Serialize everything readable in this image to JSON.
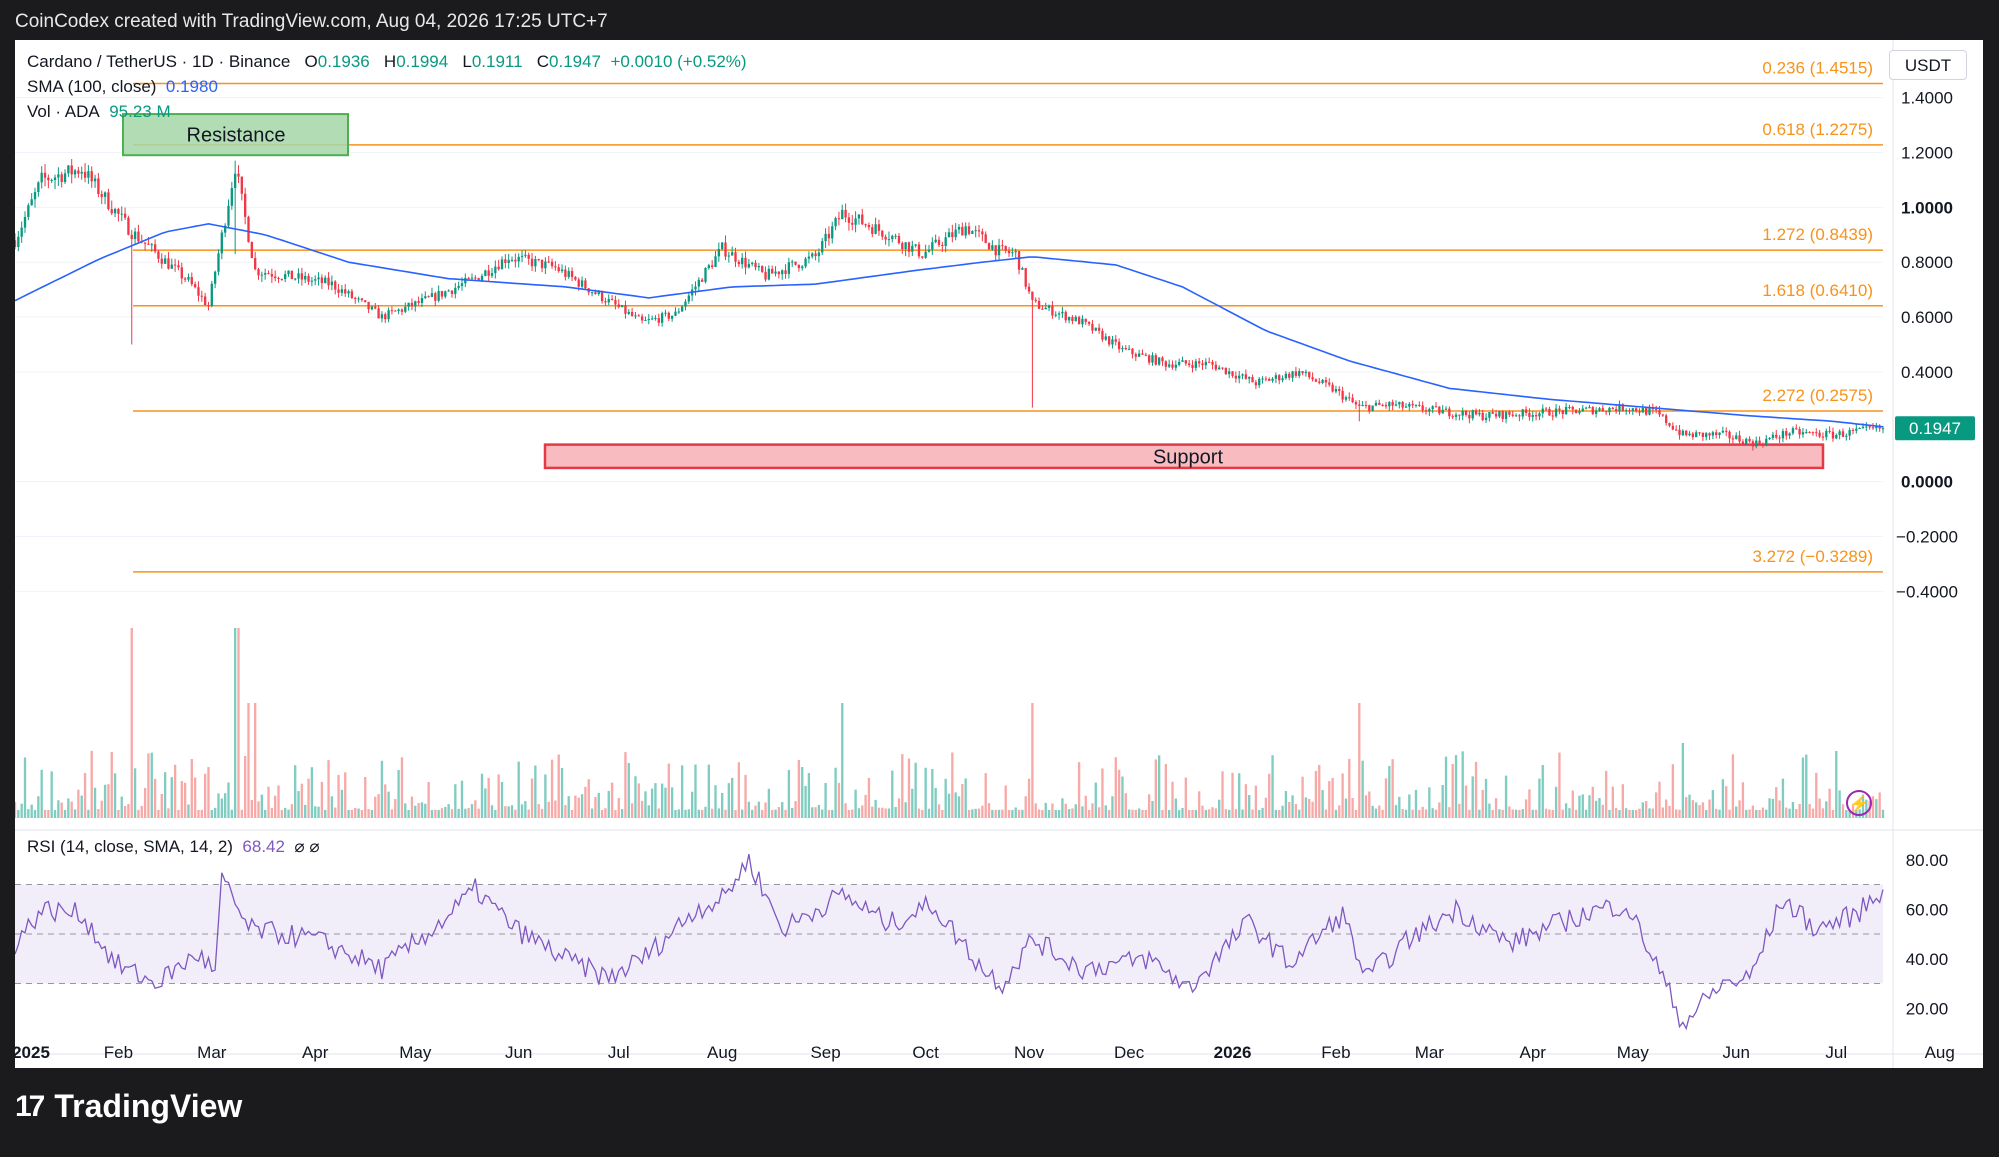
{
  "header": {
    "caption": "CoinCodex created with TradingView.com, Aug 04, 2026 17:25 UTC+7"
  },
  "legend": {
    "symbol": "Cardano / TetherUS · 1D · Binance",
    "o_label": "O",
    "o_value": "0.1936",
    "h_label": "H",
    "h_value": "0.1994",
    "l_label": "L",
    "l_value": "0.1911",
    "c_label": "C",
    "c_value": "0.1947",
    "change": "+0.0010 (+0.52%)",
    "sma_label": "SMA (100, close)",
    "sma_value": "0.1980",
    "vol_label": "Vol · ADA",
    "vol_value": "95.23 M",
    "rsi_label": "RSI (14, close, SMA, 14, 2)",
    "rsi_value": "68.42",
    "rsi_icons": "⌀ ⌀"
  },
  "currency_button": "USDT",
  "brand": {
    "logo": "17",
    "name": "TradingView"
  },
  "chart_data": {
    "type": "candlestick",
    "symbol": "ADAUSDT",
    "x_ticks": [
      "2025",
      "Feb",
      "Mar",
      "Apr",
      "May",
      "Jun",
      "Jul",
      "Aug",
      "Sep",
      "Oct",
      "Nov",
      "Dec",
      "2026",
      "Feb",
      "Mar",
      "Apr",
      "May",
      "Jun",
      "Jul",
      "Aug"
    ],
    "y_ticks": [
      "1.4000",
      "1.2000",
      "1.0000",
      "0.8000",
      "0.6000",
      "0.4000",
      "0.0000",
      "−0.2000",
      "−0.4000"
    ],
    "bold_y_ticks": [
      "1.0000",
      "0.0000"
    ],
    "ylim": [
      -0.57,
      1.61
    ],
    "last_price": "0.1947",
    "price_path": [
      [
        0,
        0.88
      ],
      [
        8,
        1.1
      ],
      [
        20,
        1.14
      ],
      [
        35,
        0.91
      ],
      [
        52,
        0.73
      ],
      [
        58,
        0.64
      ],
      [
        66,
        1.15
      ],
      [
        72,
        0.77
      ],
      [
        95,
        0.72
      ],
      [
        110,
        0.6
      ],
      [
        125,
        0.67
      ],
      [
        138,
        0.74
      ],
      [
        148,
        0.82
      ],
      [
        162,
        0.78
      ],
      [
        175,
        0.68
      ],
      [
        188,
        0.58
      ],
      [
        198,
        0.61
      ],
      [
        212,
        0.85
      ],
      [
        225,
        0.75
      ],
      [
        240,
        0.82
      ],
      [
        248,
        0.98
      ],
      [
        262,
        0.9
      ],
      [
        272,
        0.83
      ],
      [
        285,
        0.93
      ],
      [
        295,
        0.84
      ],
      [
        300,
        0.83
      ],
      [
        305,
        0.65
      ],
      [
        320,
        0.58
      ],
      [
        332,
        0.48
      ],
      [
        345,
        0.43
      ],
      [
        358,
        0.43
      ],
      [
        372,
        0.36
      ],
      [
        385,
        0.4
      ],
      [
        396,
        0.33
      ],
      [
        403,
        0.27
      ],
      [
        412,
        0.28
      ],
      [
        425,
        0.26
      ],
      [
        440,
        0.24
      ],
      [
        455,
        0.25
      ],
      [
        470,
        0.26
      ],
      [
        483,
        0.27
      ],
      [
        492,
        0.25
      ],
      [
        500,
        0.17
      ],
      [
        512,
        0.17
      ],
      [
        522,
        0.14
      ],
      [
        532,
        0.18
      ],
      [
        545,
        0.17
      ],
      [
        560,
        0.1947
      ]
    ],
    "series": [
      {
        "name": "SMA (100, close)",
        "values_path": [
          [
            0,
            0.66
          ],
          [
            25,
            0.81
          ],
          [
            45,
            0.91
          ],
          [
            58,
            0.94
          ],
          [
            75,
            0.9
          ],
          [
            100,
            0.8
          ],
          [
            130,
            0.74
          ],
          [
            165,
            0.71
          ],
          [
            190,
            0.67
          ],
          [
            215,
            0.71
          ],
          [
            240,
            0.72
          ],
          [
            270,
            0.77
          ],
          [
            290,
            0.8
          ],
          [
            305,
            0.82
          ],
          [
            330,
            0.79
          ],
          [
            350,
            0.71
          ],
          [
            375,
            0.55
          ],
          [
            400,
            0.44
          ],
          [
            430,
            0.34
          ],
          [
            460,
            0.3
          ],
          [
            490,
            0.27
          ],
          [
            520,
            0.24
          ],
          [
            545,
            0.22
          ],
          [
            560,
            0.2
          ]
        ]
      },
      {
        "name": "Vol · ADA",
        "last": "95.23 M"
      },
      {
        "name": "RSI (14, close, SMA, 14, 2)",
        "ylim": [
          8,
          88
        ],
        "y_ticks": [
          "80.00",
          "60.00",
          "40.00",
          "20.00"
        ],
        "band": [
          30,
          70
        ],
        "mid": 50,
        "last": 68.42,
        "values_path": [
          [
            0,
            46
          ],
          [
            8,
            60
          ],
          [
            20,
            58
          ],
          [
            30,
            38
          ],
          [
            42,
            30
          ],
          [
            55,
            42
          ],
          [
            60,
            34
          ],
          [
            62,
            72
          ],
          [
            70,
            52
          ],
          [
            90,
            48
          ],
          [
            110,
            36
          ],
          [
            128,
            55
          ],
          [
            138,
            68
          ],
          [
            150,
            52
          ],
          [
            165,
            40
          ],
          [
            178,
            32
          ],
          [
            190,
            42
          ],
          [
            204,
            60
          ],
          [
            212,
            64
          ],
          [
            220,
            80
          ],
          [
            230,
            52
          ],
          [
            248,
            66
          ],
          [
            262,
            54
          ],
          [
            275,
            62
          ],
          [
            290,
            36
          ],
          [
            296,
            30
          ],
          [
            305,
            48
          ],
          [
            320,
            36
          ],
          [
            340,
            40
          ],
          [
            352,
            28
          ],
          [
            370,
            55
          ],
          [
            382,
            38
          ],
          [
            398,
            58
          ],
          [
            405,
            32
          ],
          [
            418,
            48
          ],
          [
            432,
            60
          ],
          [
            448,
            46
          ],
          [
            462,
            54
          ],
          [
            475,
            60
          ],
          [
            483,
            62
          ],
          [
            492,
            38
          ],
          [
            500,
            14
          ],
          [
            512,
            30
          ],
          [
            520,
            32
          ],
          [
            530,
            64
          ],
          [
            540,
            52
          ],
          [
            552,
            58
          ],
          [
            560,
            68
          ]
        ]
      }
    ],
    "fib_levels": [
      {
        "label": "0.236 (1.4515)",
        "value": 1.4515
      },
      {
        "label": "0.618 (1.2275)",
        "value": 1.2275
      },
      {
        "label": "1.272 (0.8439)",
        "value": 0.8439
      },
      {
        "label": "1.618 (0.6410)",
        "value": 0.641
      },
      {
        "label": "2.272 (0.2575)",
        "value": 0.2575
      },
      {
        "label": "3.272 (−0.3289)",
        "value": -0.3289
      }
    ],
    "zones": [
      {
        "label": "Resistance",
        "y_range": [
          1.19,
          1.34
        ],
        "x_range": [
          "Jan 2025",
          "Mar 2025"
        ]
      },
      {
        "label": "Support",
        "y_range": [
          0.05,
          0.135
        ],
        "x_range": [
          "Jun 2025",
          "Jul 2026"
        ]
      }
    ],
    "colors": {
      "up": "#089981",
      "down": "#f23645",
      "sma": "#2962ff",
      "fib": "#f7931a",
      "rsi": "#7e57c2",
      "support_fill": "#f8bbbf",
      "support_border": "#e53945",
      "resistance_fill": "#a5d6a7",
      "resistance_border": "#4caf50"
    }
  }
}
